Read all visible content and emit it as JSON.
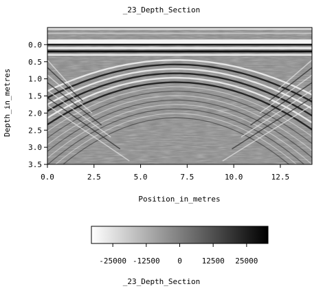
{
  "chart_data": [
    {
      "type": "heatmap",
      "title": "_23_Depth_Section",
      "xlabel": "Position_in_metres",
      "ylabel": "Depth_in_metres",
      "xlim": [
        0.0,
        14.2
      ],
      "ylim": [
        3.5,
        -0.5
      ],
      "x_ticks": [
        "0.0",
        "2.5",
        "5.0",
        "7.5",
        "10.0",
        "12.5"
      ],
      "y_ticks": [
        "0.0",
        "0.5",
        "1.0",
        "1.5",
        "2.0",
        "2.5",
        "3.0",
        "3.5"
      ],
      "colormap": "gray",
      "grid": false
    },
    {
      "type": "colorbar",
      "title": "_23_Depth_Section",
      "range": [
        -33000,
        33000
      ],
      "ticks": [
        "-25000",
        "-12500",
        "0",
        "12500",
        "25000"
      ],
      "colormap": "gray"
    }
  ]
}
